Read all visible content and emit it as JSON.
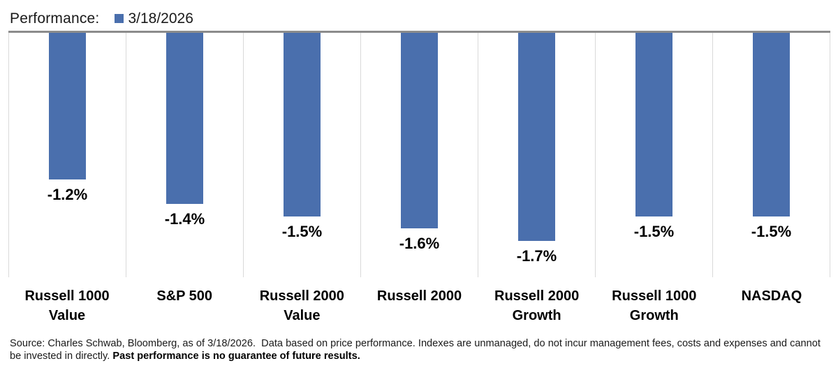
{
  "header": {
    "title": "Performance:",
    "legend": {
      "label": "3/18/2026",
      "color": "#4A6FAD"
    }
  },
  "chart_data": {
    "type": "bar",
    "title": "Performance:",
    "legend_entries": [
      "3/18/2026"
    ],
    "legend_position": "top",
    "categories": [
      "Russell 1000 Value",
      "S&P 500",
      "Russell 2000 Value",
      "Russell 2000",
      "Russell 2000 Growth",
      "Russell 1000 Growth",
      "NASDAQ"
    ],
    "values": [
      -1.2,
      -1.4,
      -1.5,
      -1.6,
      -1.7,
      -1.5,
      -1.5
    ],
    "value_labels": [
      "-1.2%",
      "-1.4%",
      "-1.5%",
      "-1.6%",
      "-1.7%",
      "-1.5%",
      "-1.5%"
    ],
    "bar_color": "#4A6FAD",
    "axis_line_color": "#8C8C8C",
    "gridline_color": "#D9D9D9",
    "ylim": [
      -2,
      0
    ],
    "grid": "vertical-category-separators",
    "orientation": "columns-hanging-from-zero-line"
  },
  "footer": {
    "source_regular": "Source: Charles Schwab, Bloomberg, as of 3/18/2026.  Data based on price performance. Indexes are unmanaged, do not incur management fees, costs and expenses and cannot be invested in directly. ",
    "source_bold": "Past performance is no guarantee of future results."
  }
}
